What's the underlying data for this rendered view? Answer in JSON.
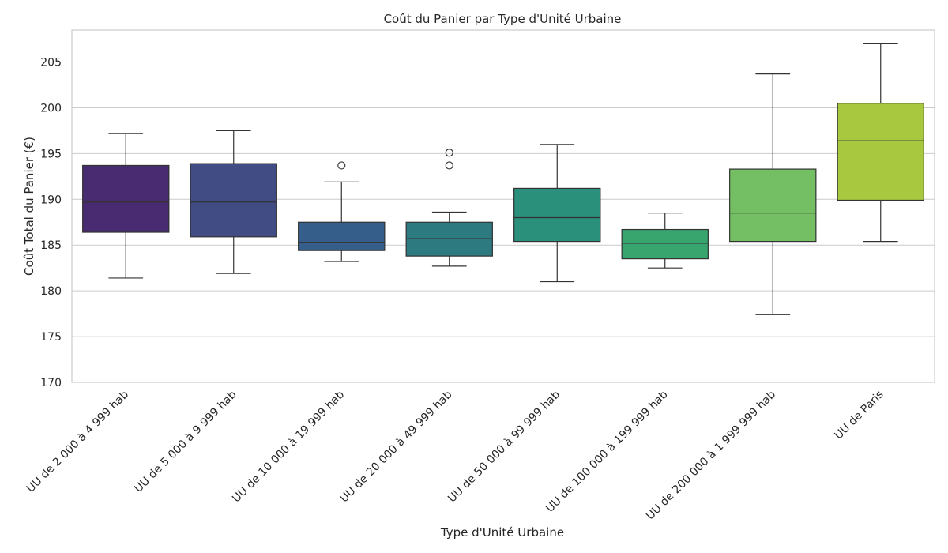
{
  "chart_data": {
    "type": "box",
    "title": "Coût du Panier par Type d'Unité Urbaine",
    "xlabel": "Type d'Unité Urbaine",
    "ylabel": "Coût Total du Panier (€)",
    "ylim": [
      170,
      208.5
    ],
    "yticks": [
      170,
      175,
      180,
      185,
      190,
      195,
      200,
      205
    ],
    "grid": "horizontal",
    "categories": [
      "UU de 2 000 à 4 999 hab",
      "UU de 5 000 à 9 999 hab",
      "UU de 10 000 à 19 999 hab",
      "UU de 20 000 à 49 999 hab",
      "UU de 50 000 à 99 999 hab",
      "UU de 100 000 à 199 999 hab",
      "UU de 200 000 à 1 999 999 hab",
      "UU de Paris"
    ],
    "boxes": [
      {
        "whisker_low": 181.4,
        "q1": 186.4,
        "median": 189.7,
        "q3": 193.7,
        "whisker_high": 197.2,
        "outliers": [],
        "color": "#482b70"
      },
      {
        "whisker_low": 181.9,
        "q1": 185.9,
        "median": 189.7,
        "q3": 193.9,
        "whisker_high": 197.5,
        "outliers": [],
        "color": "#414c84"
      },
      {
        "whisker_low": 183.2,
        "q1": 184.4,
        "median": 185.3,
        "q3": 187.5,
        "whisker_high": 191.9,
        "outliers": [
          193.7
        ],
        "color": "#355f8a"
      },
      {
        "whisker_low": 182.7,
        "q1": 183.8,
        "median": 185.7,
        "q3": 187.5,
        "whisker_high": 188.6,
        "outliers": [
          193.7,
          195.1
        ],
        "color": "#2d7a81"
      },
      {
        "whisker_low": 181.0,
        "q1": 185.4,
        "median": 188.0,
        "q3": 191.2,
        "whisker_high": 196.0,
        "outliers": [],
        "color": "#2a8f7b"
      },
      {
        "whisker_low": 182.5,
        "q1": 183.5,
        "median": 185.2,
        "q3": 186.7,
        "whisker_high": 188.5,
        "outliers": [],
        "color": "#38a56f"
      },
      {
        "whisker_low": 177.4,
        "q1": 185.4,
        "median": 188.5,
        "q3": 193.3,
        "whisker_high": 203.7,
        "outliers": [],
        "color": "#74bf64"
      },
      {
        "whisker_low": 185.4,
        "q1": 189.9,
        "median": 196.4,
        "q3": 200.5,
        "whisker_high": 207.0,
        "outliers": [],
        "color": "#a8c93f"
      }
    ]
  }
}
